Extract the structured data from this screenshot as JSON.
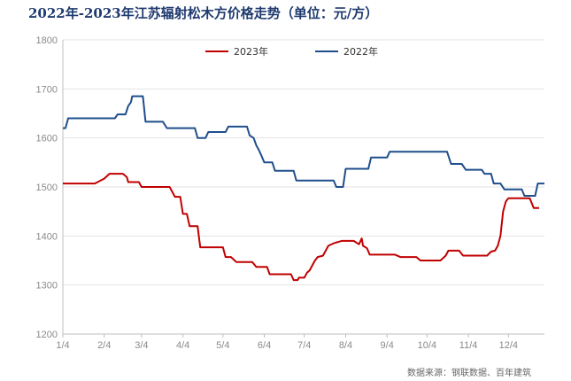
{
  "chart_data": {
    "type": "line",
    "title": "2022年-2023年江苏辐射松木方价格走势（单位：元/方）",
    "source": "数据来源：钢联数据、百年建筑",
    "x_ticks": [
      "1/4",
      "2/4",
      "3/4",
      "4/4",
      "5/4",
      "6/4",
      "7/4",
      "8/4",
      "9/4",
      "10/4",
      "11/4",
      "12/4"
    ],
    "ylim": [
      1200,
      1800
    ],
    "y_ticks": [
      1200,
      1300,
      1400,
      1500,
      1600,
      1700,
      1800
    ],
    "legend_position": "top-center",
    "series": [
      {
        "name": "2023年",
        "color": "#c00000",
        "points": [
          [
            "1/4",
            1507
          ],
          [
            "1/28",
            1507
          ],
          [
            "2/4",
            1517
          ],
          [
            "2/8",
            1527
          ],
          [
            "2/18",
            1527
          ],
          [
            "2/21",
            1520
          ],
          [
            "2/22",
            1510
          ],
          [
            "3/2",
            1510
          ],
          [
            "3/4",
            1500
          ],
          [
            "3/25",
            1500
          ],
          [
            "3/27",
            1490
          ],
          [
            "3/29",
            1480
          ],
          [
            "4/2",
            1480
          ],
          [
            "4/4",
            1445
          ],
          [
            "4/7",
            1445
          ],
          [
            "4/9",
            1420
          ],
          [
            "4/15",
            1420
          ],
          [
            "4/17",
            1377
          ],
          [
            "4/25",
            1377
          ],
          [
            "5/4",
            1377
          ],
          [
            "5/6",
            1357
          ],
          [
            "5/10",
            1357
          ],
          [
            "5/14",
            1347
          ],
          [
            "5/26",
            1347
          ],
          [
            "5/29",
            1337
          ],
          [
            "6/6",
            1337
          ],
          [
            "6/8",
            1322
          ],
          [
            "6/24",
            1322
          ],
          [
            "6/26",
            1310
          ],
          [
            "6/29",
            1310
          ],
          [
            "6/30",
            1315
          ],
          [
            "7/4",
            1315
          ],
          [
            "7/6",
            1325
          ],
          [
            "7/8",
            1330
          ],
          [
            "7/10",
            1340
          ],
          [
            "7/12",
            1350
          ],
          [
            "7/14",
            1357
          ],
          [
            "7/18",
            1360
          ],
          [
            "7/20",
            1370
          ],
          [
            "7/22",
            1380
          ],
          [
            "7/26",
            1385
          ],
          [
            "8/1",
            1390
          ],
          [
            "8/10",
            1390
          ],
          [
            "8/14",
            1383
          ],
          [
            "8/16",
            1395
          ],
          [
            "8/17",
            1380
          ],
          [
            "8/20",
            1375
          ],
          [
            "8/22",
            1362
          ],
          [
            "9/10",
            1362
          ],
          [
            "9/14",
            1357
          ],
          [
            "9/26",
            1357
          ],
          [
            "9/29",
            1350
          ],
          [
            "10/14",
            1350
          ],
          [
            "10/18",
            1360
          ],
          [
            "10/20",
            1370
          ],
          [
            "10/28",
            1370
          ],
          [
            "10/31",
            1360
          ],
          [
            "11/18",
            1360
          ],
          [
            "11/21",
            1368
          ],
          [
            "11/24",
            1370
          ],
          [
            "11/26",
            1380
          ],
          [
            "11/28",
            1400
          ],
          [
            "11/30",
            1450
          ],
          [
            "12/2",
            1470
          ],
          [
            "12/4",
            1477
          ],
          [
            "12/20",
            1477
          ],
          [
            "12/23",
            1457
          ],
          [
            "12/27",
            1457
          ]
        ]
      },
      {
        "name": "2022年",
        "color": "#1f4e8c",
        "points": [
          [
            "1/1",
            1600
          ],
          [
            "1/3",
            1600
          ],
          [
            "1/4",
            1620
          ],
          [
            "1/6",
            1620
          ],
          [
            "1/8",
            1640
          ],
          [
            "2/12",
            1640
          ],
          [
            "2/14",
            1648
          ],
          [
            "2/20",
            1648
          ],
          [
            "2/22",
            1665
          ],
          [
            "2/24",
            1673
          ],
          [
            "2/25",
            1685
          ],
          [
            "3/5",
            1685
          ],
          [
            "3/7",
            1633
          ],
          [
            "3/20",
            1633
          ],
          [
            "3/23",
            1620
          ],
          [
            "4/13",
            1620
          ],
          [
            "4/15",
            1600
          ],
          [
            "4/21",
            1600
          ],
          [
            "4/23",
            1612
          ],
          [
            "5/6",
            1612
          ],
          [
            "5/8",
            1623
          ],
          [
            "5/22",
            1623
          ],
          [
            "5/24",
            1605
          ],
          [
            "5/27",
            1600
          ],
          [
            "5/29",
            1585
          ],
          [
            "5/31",
            1575
          ],
          [
            "6/2",
            1563
          ],
          [
            "6/4",
            1550
          ],
          [
            "6/10",
            1550
          ],
          [
            "6/12",
            1533
          ],
          [
            "6/26",
            1533
          ],
          [
            "6/28",
            1513
          ],
          [
            "7/26",
            1513
          ],
          [
            "7/28",
            1500
          ],
          [
            "8/2",
            1500
          ],
          [
            "8/4",
            1537
          ],
          [
            "8/21",
            1537
          ],
          [
            "8/23",
            1560
          ],
          [
            "9/4",
            1560
          ],
          [
            "9/6",
            1572
          ],
          [
            "10/19",
            1572
          ],
          [
            "10/22",
            1547
          ],
          [
            "10/30",
            1547
          ],
          [
            "11/2",
            1535
          ],
          [
            "11/14",
            1535
          ],
          [
            "11/16",
            1527
          ],
          [
            "11/21",
            1527
          ],
          [
            "11/23",
            1507
          ],
          [
            "11/28",
            1507
          ],
          [
            "12/1",
            1495
          ],
          [
            "12/14",
            1495
          ],
          [
            "12/16",
            1482
          ],
          [
            "12/24",
            1482
          ],
          [
            "12/26",
            1507
          ],
          [
            "12/31",
            1507
          ]
        ]
      }
    ]
  }
}
